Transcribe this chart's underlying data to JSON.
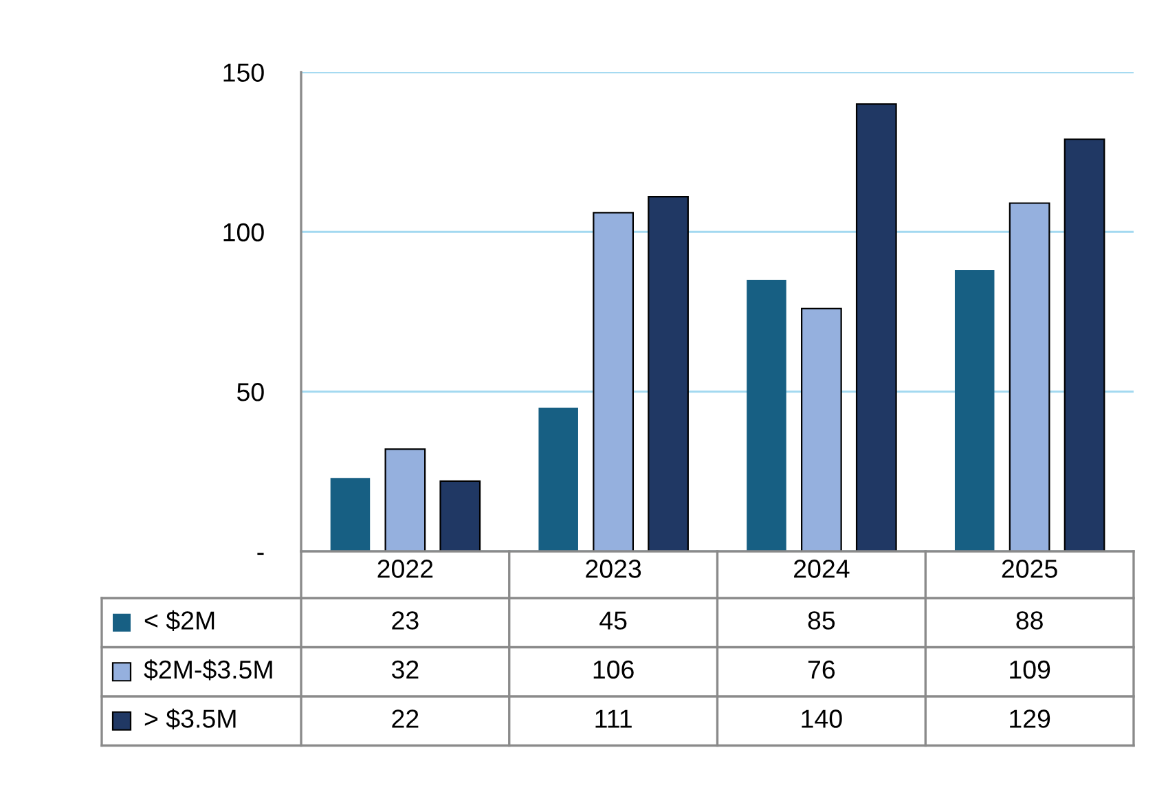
{
  "chart_data": {
    "type": "bar",
    "categories": [
      "2022",
      "2023",
      "2024",
      "2025"
    ],
    "series": [
      {
        "name": "< $2M",
        "color": "#175f83",
        "values": [
          23,
          45,
          85,
          88
        ]
      },
      {
        "name": "$2M-$3.5M",
        "color": "#95b0de",
        "values": [
          32,
          106,
          76,
          109
        ]
      },
      {
        "name": "> $3.5M",
        "color": "#203864",
        "values": [
          22,
          111,
          140,
          129
        ]
      }
    ],
    "ylim": [
      0,
      150
    ],
    "yticks": [
      {
        "value": 0,
        "label": "-"
      },
      50,
      100,
      150
    ],
    "grid": "y",
    "legend": "bottom",
    "data_labels": true
  }
}
